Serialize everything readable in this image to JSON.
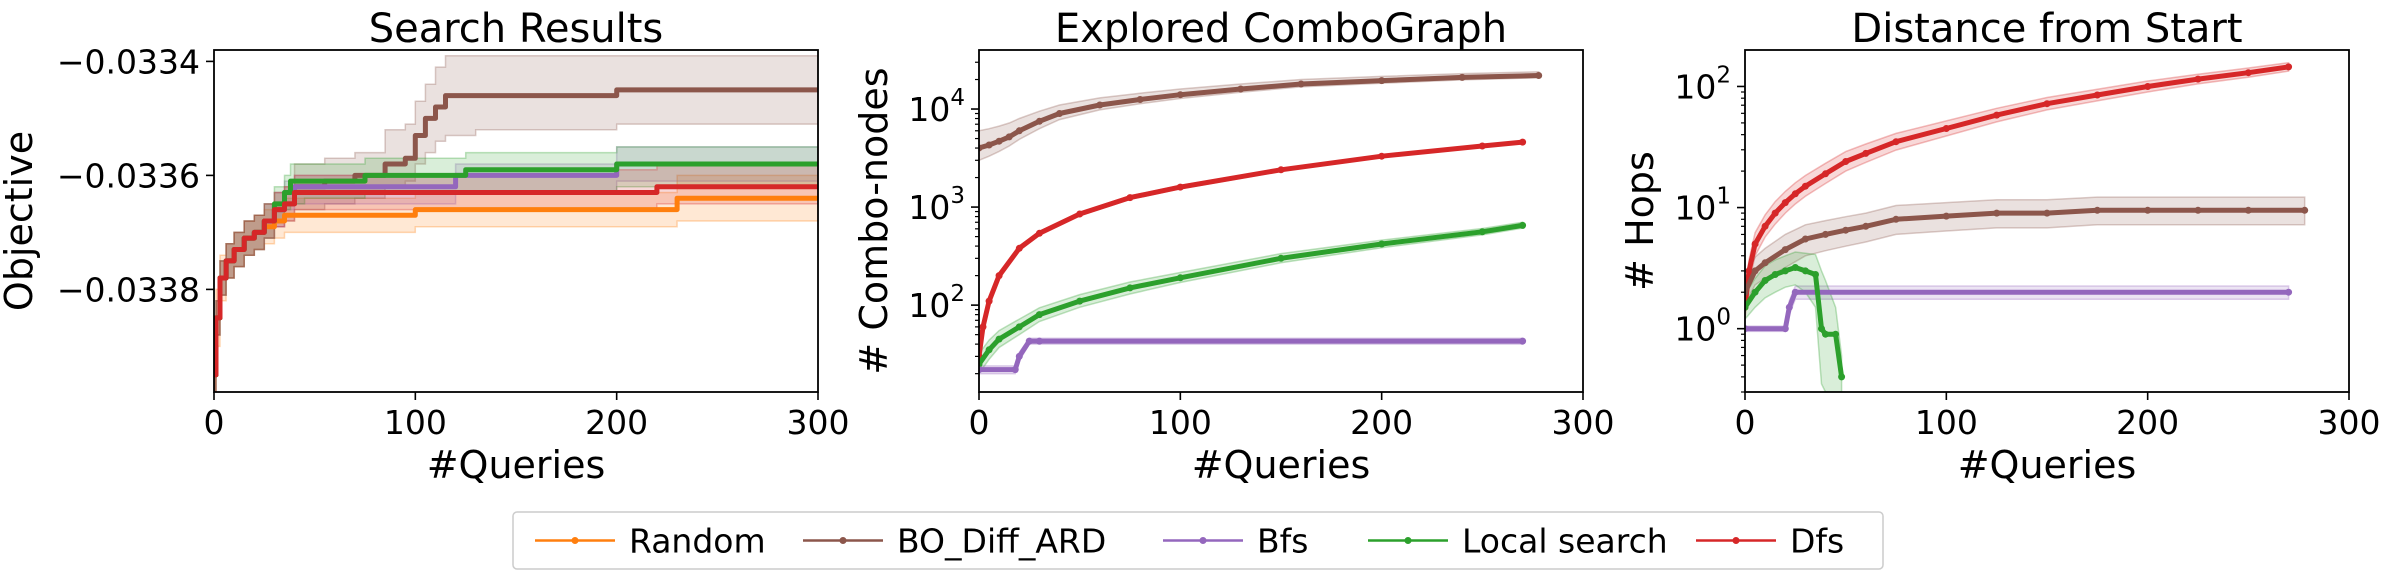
{
  "legend": {
    "items": [
      {
        "name": "Random",
        "color": "#ff7f0e"
      },
      {
        "name": "BO_Diff_ARD",
        "color": "#8c564b"
      },
      {
        "name": "Bfs",
        "color": "#9467bd"
      },
      {
        "name": "Local search",
        "color": "#2ca02c"
      },
      {
        "name": "Dfs",
        "color": "#d62728"
      }
    ],
    "placement": "bottom-center"
  },
  "chart_data": [
    {
      "type": "line",
      "title": "Search Results",
      "xlabel": "#Queries",
      "ylabel": "Objective",
      "xlim": [
        0,
        300
      ],
      "ylim": [
        -0.03398,
        -0.03338
      ],
      "xticks": [
        0,
        100,
        200,
        300
      ],
      "xtick_labels": [
        "0",
        "100",
        "200",
        "300"
      ],
      "yticks": [
        -0.0338,
        -0.0336,
        -0.0334
      ],
      "ytick_labels": [
        "−0.0338",
        "−0.0336",
        "−0.0334"
      ],
      "yscale": "linear",
      "grid": false,
      "series": [
        {
          "name": "Random",
          "color": "#ff7f0e",
          "style": "step",
          "x": [
            0,
            1,
            3,
            6,
            10,
            15,
            20,
            25,
            30,
            35,
            40,
            100,
            230,
            300
          ],
          "y": [
            -0.03395,
            -0.03385,
            -0.03378,
            -0.03375,
            -0.03373,
            -0.03371,
            -0.0337,
            -0.03369,
            -0.03368,
            -0.03367,
            -0.03367,
            -0.03366,
            -0.03364,
            -0.03364
          ],
          "band_low": [
            -0.03398,
            -0.0339,
            -0.03382,
            -0.03378,
            -0.03376,
            -0.03374,
            -0.03373,
            -0.03372,
            -0.03371,
            -0.0337,
            -0.0337,
            -0.03369,
            -0.03368,
            -0.03368
          ],
          "band_high": [
            -0.03392,
            -0.0338,
            -0.03374,
            -0.03372,
            -0.0337,
            -0.03368,
            -0.03367,
            -0.03366,
            -0.03365,
            -0.03364,
            -0.03364,
            -0.03363,
            -0.0336,
            -0.0336
          ]
        },
        {
          "name": "BO_Diff_ARD",
          "color": "#8c564b",
          "style": "step",
          "x": [
            0,
            1,
            3,
            6,
            10,
            15,
            20,
            25,
            30,
            35,
            40,
            55,
            70,
            85,
            95,
            100,
            105,
            110,
            115,
            130,
            200,
            300
          ],
          "y": [
            -0.03395,
            -0.03385,
            -0.03378,
            -0.03375,
            -0.03373,
            -0.03371,
            -0.0337,
            -0.03368,
            -0.03366,
            -0.03365,
            -0.03362,
            -0.03361,
            -0.0336,
            -0.03358,
            -0.03357,
            -0.03353,
            -0.0335,
            -0.03348,
            -0.03346,
            -0.03346,
            -0.03345,
            -0.03345
          ],
          "band_low": [
            -0.03398,
            -0.03388,
            -0.03381,
            -0.03378,
            -0.03376,
            -0.03374,
            -0.03373,
            -0.03371,
            -0.03369,
            -0.03368,
            -0.03366,
            -0.03365,
            -0.03364,
            -0.03362,
            -0.03361,
            -0.03358,
            -0.03356,
            -0.03354,
            -0.03353,
            -0.03352,
            -0.03351,
            -0.03351
          ],
          "band_high": [
            -0.03392,
            -0.03382,
            -0.03375,
            -0.03372,
            -0.0337,
            -0.03368,
            -0.03367,
            -0.03365,
            -0.03363,
            -0.03362,
            -0.03358,
            -0.03357,
            -0.03356,
            -0.03352,
            -0.03351,
            -0.03347,
            -0.03344,
            -0.03341,
            -0.03339,
            -0.03339,
            -0.03339,
            -0.03339
          ]
        },
        {
          "name": "Bfs",
          "color": "#9467bd",
          "style": "step",
          "x": [
            0,
            1,
            3,
            6,
            10,
            15,
            20,
            25,
            30,
            35,
            40,
            45,
            120,
            200,
            300
          ],
          "y": [
            -0.03395,
            -0.03385,
            -0.03378,
            -0.03375,
            -0.03373,
            -0.03371,
            -0.0337,
            -0.03368,
            -0.03366,
            -0.03363,
            -0.03362,
            -0.03362,
            -0.0336,
            -0.03358,
            -0.03358
          ],
          "band_low": [
            -0.03398,
            -0.03388,
            -0.03381,
            -0.03378,
            -0.03376,
            -0.03374,
            -0.03373,
            -0.03371,
            -0.03369,
            -0.03366,
            -0.03365,
            -0.03365,
            -0.03363,
            -0.03361,
            -0.03361
          ],
          "band_high": [
            -0.03392,
            -0.03382,
            -0.03375,
            -0.03372,
            -0.0337,
            -0.03368,
            -0.03367,
            -0.03365,
            -0.03363,
            -0.03361,
            -0.0336,
            -0.0336,
            -0.03358,
            -0.03355,
            -0.03355
          ]
        },
        {
          "name": "Local search",
          "color": "#2ca02c",
          "style": "step",
          "x": [
            0,
            1,
            3,
            6,
            10,
            15,
            20,
            25,
            30,
            35,
            38,
            45,
            75,
            125,
            200,
            300
          ],
          "y": [
            -0.03395,
            -0.03385,
            -0.03378,
            -0.03375,
            -0.03373,
            -0.03371,
            -0.0337,
            -0.03368,
            -0.03365,
            -0.03363,
            -0.03361,
            -0.03361,
            -0.0336,
            -0.03359,
            -0.03358,
            -0.03358
          ],
          "band_low": [
            -0.03398,
            -0.03388,
            -0.03381,
            -0.03378,
            -0.03376,
            -0.03374,
            -0.03373,
            -0.03371,
            -0.03368,
            -0.03366,
            -0.03365,
            -0.03364,
            -0.03363,
            -0.03363,
            -0.03362,
            -0.03362
          ],
          "band_high": [
            -0.03392,
            -0.03382,
            -0.03375,
            -0.03372,
            -0.0337,
            -0.03368,
            -0.03367,
            -0.03365,
            -0.03362,
            -0.0336,
            -0.03358,
            -0.03358,
            -0.03357,
            -0.03356,
            -0.03355,
            -0.03355
          ]
        },
        {
          "name": "Dfs",
          "color": "#d62728",
          "style": "step",
          "x": [
            0,
            1,
            3,
            6,
            10,
            15,
            20,
            25,
            30,
            35,
            40,
            100,
            200,
            220,
            300
          ],
          "y": [
            -0.03395,
            -0.03385,
            -0.03378,
            -0.03375,
            -0.03373,
            -0.03371,
            -0.0337,
            -0.03368,
            -0.03366,
            -0.03365,
            -0.03363,
            -0.03363,
            -0.03363,
            -0.03362,
            -0.03362
          ],
          "band_low": [
            -0.03398,
            -0.03388,
            -0.03381,
            -0.03378,
            -0.03376,
            -0.03374,
            -0.03373,
            -0.03371,
            -0.03369,
            -0.03368,
            -0.03366,
            -0.03366,
            -0.03366,
            -0.03365,
            -0.03365
          ],
          "band_high": [
            -0.03392,
            -0.03382,
            -0.03375,
            -0.03372,
            -0.0337,
            -0.03368,
            -0.03367,
            -0.03365,
            -0.03363,
            -0.03362,
            -0.0336,
            -0.0336,
            -0.03359,
            -0.03358,
            -0.03358
          ]
        }
      ]
    },
    {
      "type": "line",
      "title": "Explored ComboGraph",
      "xlabel": "#Queries",
      "ylabel": "# Combo-nodes",
      "xlim": [
        0,
        300
      ],
      "ylim": [
        13,
        40000
      ],
      "xticks": [
        0,
        100,
        200,
        300
      ],
      "xtick_labels": [
        "0",
        "100",
        "200",
        "300"
      ],
      "yticks": [
        100,
        1000,
        10000
      ],
      "ytick_labels": [
        "10^2",
        "10^3",
        "10^4"
      ],
      "yscale": "log",
      "grid": false,
      "series": [
        {
          "name": "BO_Diff_ARD",
          "color": "#8c564b",
          "style": "line",
          "x": [
            0,
            5,
            10,
            15,
            20,
            30,
            40,
            60,
            80,
            100,
            130,
            160,
            200,
            240,
            278
          ],
          "y": [
            4000,
            4300,
            4700,
            5200,
            6000,
            7500,
            9000,
            11000,
            12500,
            14000,
            16000,
            18000,
            19500,
            21000,
            22000
          ],
          "band_low": [
            3000,
            3300,
            3700,
            4200,
            4900,
            6300,
            7800,
            9800,
            11300,
            12800,
            14800,
            16800,
            18300,
            19800,
            20800
          ],
          "band_high": [
            6000,
            6300,
            6700,
            7200,
            8000,
            9500,
            11000,
            13000,
            14500,
            16000,
            18000,
            20000,
            21500,
            23000,
            24000
          ]
        },
        {
          "name": "Dfs",
          "color": "#d62728",
          "style": "line",
          "x": [
            0,
            2,
            5,
            10,
            20,
            30,
            50,
            75,
            100,
            150,
            200,
            250,
            270
          ],
          "y": [
            30,
            60,
            110,
            200,
            380,
            540,
            850,
            1250,
            1600,
            2400,
            3300,
            4200,
            4600
          ],
          "band_low": [
            25,
            52,
            98,
            185,
            360,
            515,
            815,
            1200,
            1540,
            2320,
            3200,
            4080,
            4470
          ],
          "band_high": [
            35,
            68,
            122,
            215,
            400,
            565,
            885,
            1300,
            1660,
            2480,
            3400,
            4320,
            4730
          ]
        },
        {
          "name": "Local search",
          "color": "#2ca02c",
          "style": "line",
          "x": [
            0,
            5,
            10,
            20,
            30,
            50,
            75,
            100,
            150,
            200,
            250,
            270
          ],
          "y": [
            25,
            35,
            45,
            60,
            80,
            110,
            150,
            190,
            300,
            420,
            560,
            650
          ],
          "band_low": [
            20,
            28,
            37,
            50,
            68,
            95,
            130,
            170,
            270,
            385,
            520,
            610
          ],
          "band_high": [
            32,
            44,
            55,
            72,
            94,
            128,
            172,
            215,
            335,
            460,
            605,
            700
          ]
        },
        {
          "name": "Bfs",
          "color": "#9467bd",
          "style": "line",
          "x": [
            0,
            18,
            20,
            25,
            30,
            270
          ],
          "y": [
            22,
            22,
            30,
            43,
            43,
            43
          ],
          "band_low": [
            20,
            20,
            27,
            40,
            40,
            40
          ],
          "band_high": [
            24,
            24,
            33,
            46,
            46,
            46
          ]
        }
      ]
    },
    {
      "type": "line",
      "title": "Distance from Start",
      "xlabel": "#Queries",
      "ylabel": "# Hops",
      "xlim": [
        0,
        300
      ],
      "ylim": [
        0.3,
        200
      ],
      "xticks": [
        0,
        100,
        200,
        300
      ],
      "xtick_labels": [
        "0",
        "100",
        "200",
        "300"
      ],
      "yticks": [
        1,
        10,
        100
      ],
      "ytick_labels": [
        "10^0",
        "10^1",
        "10^2"
      ],
      "yscale": "log",
      "grid": false,
      "series": [
        {
          "name": "Dfs",
          "color": "#d62728",
          "style": "line",
          "x": [
            0,
            2,
            5,
            10,
            15,
            20,
            25,
            30,
            40,
            50,
            60,
            75,
            100,
            125,
            150,
            175,
            200,
            225,
            250,
            270
          ],
          "y": [
            1.5,
            3,
            5,
            7,
            9,
            11,
            13,
            15,
            19,
            24,
            28,
            35,
            45,
            58,
            72,
            85,
            100,
            115,
            130,
            145
          ],
          "band_low": [
            1.2,
            2.4,
            4,
            5.7,
            7.3,
            9,
            10.7,
            12.4,
            15.8,
            20,
            23.6,
            29.8,
            39,
            51,
            64,
            76,
            90,
            105,
            119,
            134
          ],
          "band_high": [
            1.9,
            3.7,
            6.2,
            8.7,
            11.2,
            13.6,
            16,
            18.4,
            23.2,
            29,
            33.5,
            41,
            52,
            66,
            81,
            95,
            111,
            126,
            142,
            157
          ]
        },
        {
          "name": "BO_Diff_ARD",
          "color": "#8c564b",
          "style": "line",
          "x": [
            0,
            5,
            10,
            20,
            30,
            40,
            50,
            60,
            75,
            100,
            125,
            150,
            175,
            200,
            225,
            250,
            278
          ],
          "y": [
            2,
            3,
            3.5,
            4.5,
            5.5,
            6,
            6.5,
            7,
            8,
            8.5,
            9,
            9,
            9.5,
            9.5,
            9.5,
            9.5,
            9.5
          ],
          "band_low": [
            1.6,
            2.3,
            2.6,
            3.2,
            4,
            4.4,
            4.8,
            5.2,
            6,
            6.4,
            6.8,
            6.8,
            7.2,
            7.2,
            7.2,
            7.2,
            7.2
          ],
          "band_high": [
            2.6,
            3.9,
            4.6,
            6,
            7.2,
            7.8,
            8.4,
            9,
            10.4,
            11,
            11.6,
            11.6,
            12.2,
            12.2,
            12.2,
            12.2,
            12.2
          ]
        },
        {
          "name": "Bfs",
          "color": "#9467bd",
          "style": "line",
          "x": [
            0,
            20,
            22,
            25,
            270
          ],
          "y": [
            1,
            1,
            1.5,
            2,
            2
          ],
          "band_low": [
            0.95,
            0.95,
            1.3,
            1.75,
            1.75
          ],
          "band_high": [
            1.05,
            1.05,
            1.7,
            2.25,
            2.25
          ]
        },
        {
          "name": "Local search",
          "color": "#2ca02c",
          "style": "line",
          "x": [
            0,
            5,
            10,
            15,
            20,
            25,
            30,
            35,
            38,
            40,
            45,
            48
          ],
          "y": [
            1.5,
            2,
            2.5,
            2.8,
            3,
            3.2,
            3,
            2.8,
            1,
            0.9,
            0.9,
            0.4
          ],
          "band_low": [
            1.2,
            1.5,
            1.8,
            2,
            2.2,
            2.3,
            2,
            1.5,
            0.35,
            0.3,
            0.3,
            0.3
          ],
          "band_high": [
            1.9,
            2.6,
            3.3,
            3.7,
            4,
            4.3,
            4.2,
            4.1,
            3,
            2.5,
            1.5,
            0.6
          ]
        }
      ]
    }
  ]
}
